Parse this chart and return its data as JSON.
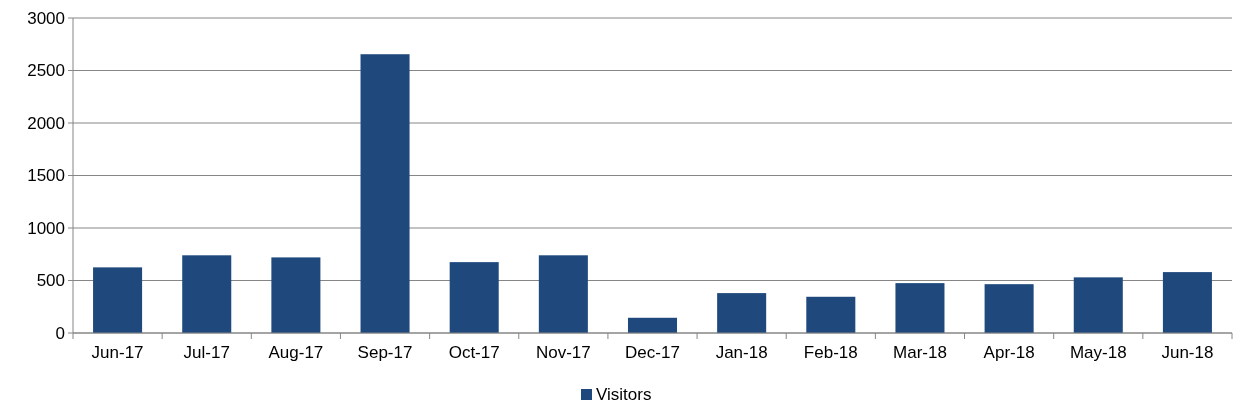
{
  "chart_data": {
    "type": "bar",
    "categories": [
      "Jun-17",
      "Jul-17",
      "Aug-17",
      "Sep-17",
      "Oct-17",
      "Nov-17",
      "Dec-17",
      "Jan-18",
      "Feb-18",
      "Mar-18",
      "Apr-18",
      "May-18",
      "Jun-18"
    ],
    "series": [
      {
        "name": "Visitors",
        "color": "#1f497d",
        "values": [
          625,
          740,
          720,
          2655,
          675,
          740,
          145,
          380,
          345,
          475,
          465,
          530,
          580
        ]
      }
    ],
    "ylim": [
      0,
      3000
    ],
    "yticks": [
      0,
      500,
      1000,
      1500,
      2000,
      2500,
      3000
    ],
    "grid": "y",
    "legend": "bottom"
  }
}
